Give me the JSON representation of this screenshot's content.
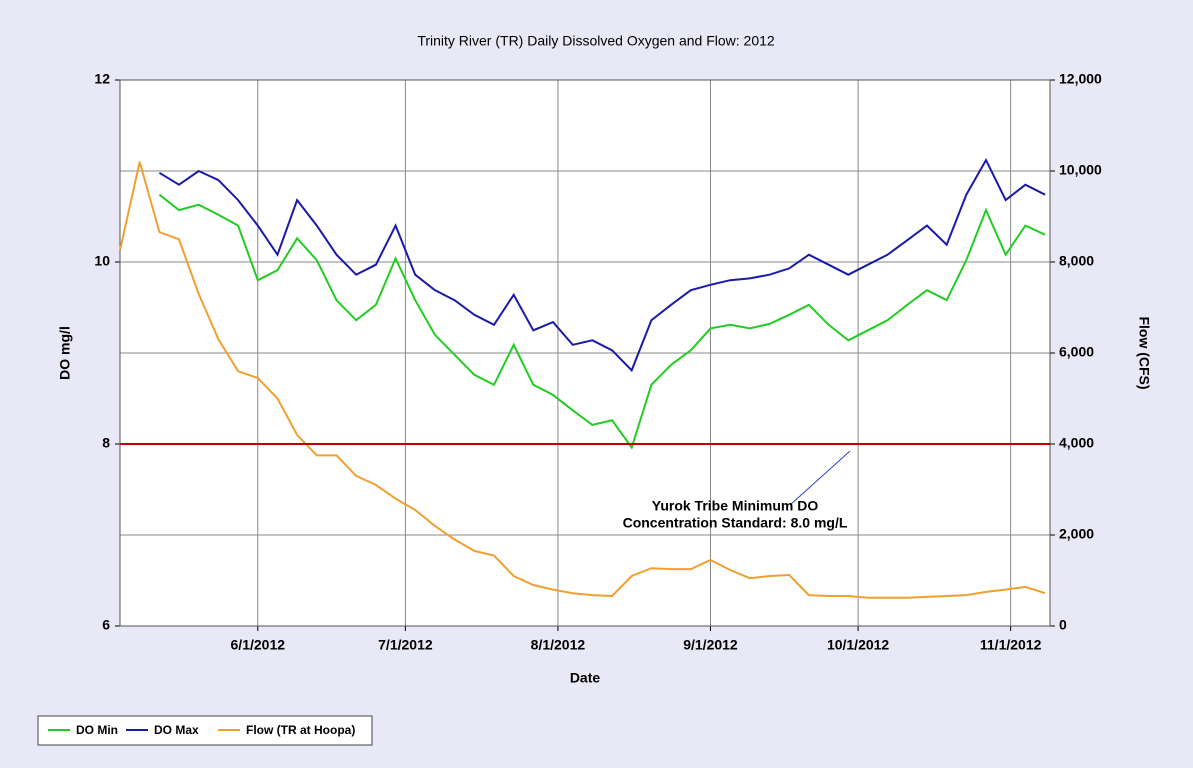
{
  "chart_data": {
    "type": "line",
    "title": "Trinity River (TR) Daily Dissolved Oxygen and Flow: 2012",
    "xlabel": "Date",
    "ylabel": "DO mg/l",
    "y2label": "Flow (CFS)",
    "xlim": [
      "2012-05-04",
      "2012-11-09"
    ],
    "xticks": [
      {
        "value": "2012-06-01",
        "label": "6/1/2012"
      },
      {
        "value": "2012-07-01",
        "label": "7/1/2012"
      },
      {
        "value": "2012-08-01",
        "label": "8/1/2012"
      },
      {
        "value": "2012-09-01",
        "label": "9/1/2012"
      },
      {
        "value": "2012-10-01",
        "label": "10/1/2012"
      },
      {
        "value": "2012-11-01",
        "label": "11/1/2012"
      }
    ],
    "ylim": [
      6,
      12
    ],
    "yticks": [
      6,
      8,
      10,
      12
    ],
    "y2lim": [
      0,
      12000
    ],
    "y2ticks": [
      0,
      {
        "value": 2000,
        "label": "2,000"
      },
      {
        "value": 4000,
        "label": "4,000"
      },
      {
        "value": 6000,
        "label": "6,000"
      },
      {
        "value": 8000,
        "label": "8,000"
      },
      {
        "value": 10000,
        "label": "10,000"
      },
      {
        "value": 12000,
        "label": "12,000"
      }
    ],
    "grid": true,
    "legend": "bottom-left",
    "reference_line": {
      "value": 8,
      "color": "#c00000"
    },
    "annotation": [
      "Yurok Tribe Minimum DO",
      "Concentration Standard: 8.0 mg/L"
    ],
    "x": [
      "2012-05-04",
      "2012-05-08",
      "2012-05-12",
      "2012-05-16",
      "2012-05-20",
      "2012-05-24",
      "2012-05-28",
      "2012-06-01",
      "2012-06-05",
      "2012-06-09",
      "2012-06-13",
      "2012-06-17",
      "2012-06-21",
      "2012-06-25",
      "2012-06-29",
      "2012-07-03",
      "2012-07-07",
      "2012-07-11",
      "2012-07-15",
      "2012-07-19",
      "2012-07-23",
      "2012-07-27",
      "2012-07-31",
      "2012-08-04",
      "2012-08-08",
      "2012-08-12",
      "2012-08-16",
      "2012-08-20",
      "2012-08-24",
      "2012-08-28",
      "2012-09-01",
      "2012-09-05",
      "2012-09-09",
      "2012-09-13",
      "2012-09-17",
      "2012-09-21",
      "2012-09-25",
      "2012-09-29",
      "2012-10-03",
      "2012-10-07",
      "2012-10-11",
      "2012-10-15",
      "2012-10-19",
      "2012-10-23",
      "2012-10-27",
      "2012-10-31",
      "2012-11-04",
      "2012-11-08"
    ],
    "series": [
      {
        "name": "DO Min",
        "color": "#22cc22",
        "values": [
          null,
          null,
          10.74,
          10.57,
          10.63,
          10.52,
          10.4,
          9.8,
          9.91,
          10.26,
          10.02,
          9.58,
          9.36,
          9.53,
          10.04,
          9.58,
          9.2,
          8.98,
          8.76,
          8.65,
          9.09,
          8.65,
          8.54,
          8.37,
          8.21,
          8.26,
          7.96,
          8.65,
          8.87,
          9.03,
          9.27,
          9.31,
          9.27,
          9.32,
          9.42,
          9.53,
          9.31,
          9.14,
          9.25,
          9.36,
          9.53,
          9.69,
          9.58,
          10.02,
          10.57,
          10.08,
          10.4,
          10.3
        ]
      },
      {
        "name": "DO Max",
        "color": "#1a1aaa",
        "values": [
          null,
          null,
          10.98,
          10.85,
          11.0,
          10.9,
          10.68,
          10.4,
          10.08,
          10.68,
          10.4,
          10.08,
          9.86,
          9.97,
          10.4,
          9.86,
          9.69,
          9.58,
          9.42,
          9.31,
          9.64,
          9.25,
          9.34,
          9.09,
          9.14,
          9.03,
          8.81,
          9.36,
          9.53,
          9.69,
          9.75,
          9.8,
          9.82,
          9.86,
          9.93,
          10.08,
          9.97,
          9.86,
          9.97,
          10.08,
          10.24,
          10.4,
          10.19,
          10.74,
          11.12,
          10.68,
          10.85,
          10.74
        ]
      },
      {
        "name": "Flow (TR at Hoopa)",
        "color": "#f0a030",
        "axis": "y2",
        "values": [
          8260,
          10200,
          8660,
          8500,
          7300,
          6300,
          5600,
          5450,
          5000,
          4200,
          3750,
          3750,
          3300,
          3100,
          2800,
          2550,
          2200,
          1900,
          1650,
          1550,
          1100,
          900,
          800,
          720,
          680,
          660,
          1100,
          1270,
          1250,
          1250,
          1450,
          1230,
          1050,
          1100,
          1120,
          680,
          660,
          660,
          620,
          620,
          620,
          640,
          660,
          680,
          750,
          800,
          860,
          720
        ]
      }
    ]
  }
}
